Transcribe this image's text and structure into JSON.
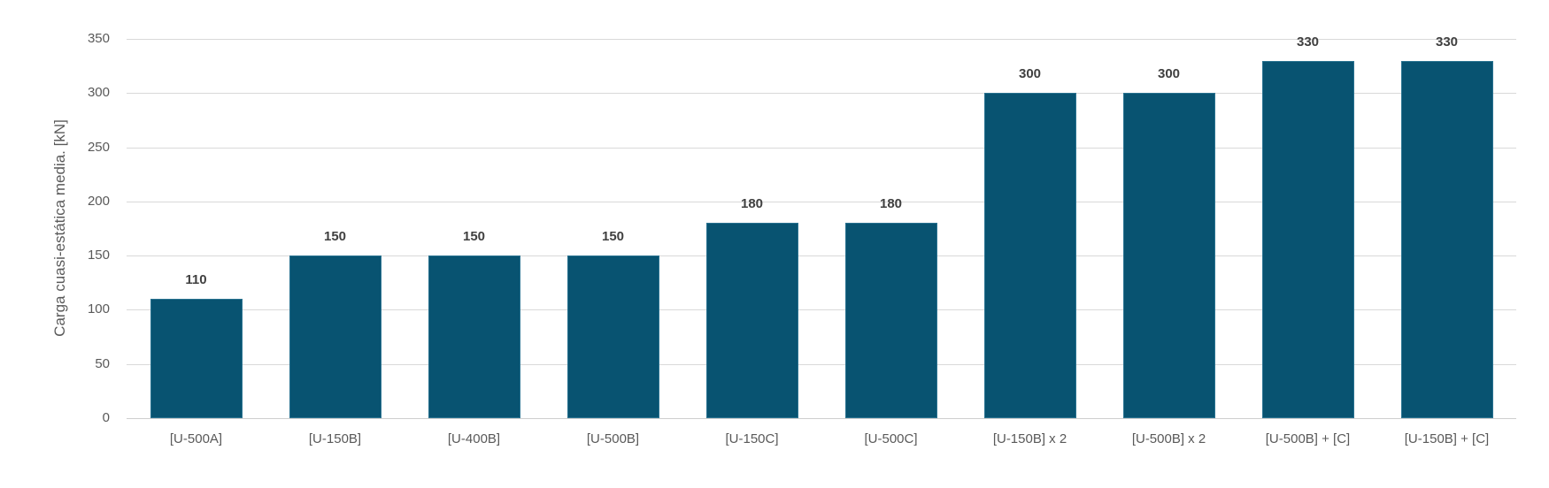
{
  "chart_data": {
    "type": "bar",
    "title": "",
    "xlabel": "",
    "ylabel": "Carga cuasi-estática media. [kN]",
    "ylim": [
      0,
      350
    ],
    "yticks": [
      0,
      50,
      100,
      150,
      200,
      250,
      300,
      350
    ],
    "grid": true,
    "legend": null,
    "bar_color": "#085371",
    "data_labels": true,
    "categories": [
      "[U-500A]",
      "[U-150B]",
      "[U-400B]",
      "[U-500B]",
      "[U-150C]",
      "[U-500C]",
      "[U-150B] x 2",
      "[U-500B] x 2",
      "[U-500B] + [C]",
      "[U-150B] + [C]"
    ],
    "values": [
      110,
      150,
      150,
      150,
      180,
      180,
      300,
      300,
      330,
      330
    ]
  }
}
